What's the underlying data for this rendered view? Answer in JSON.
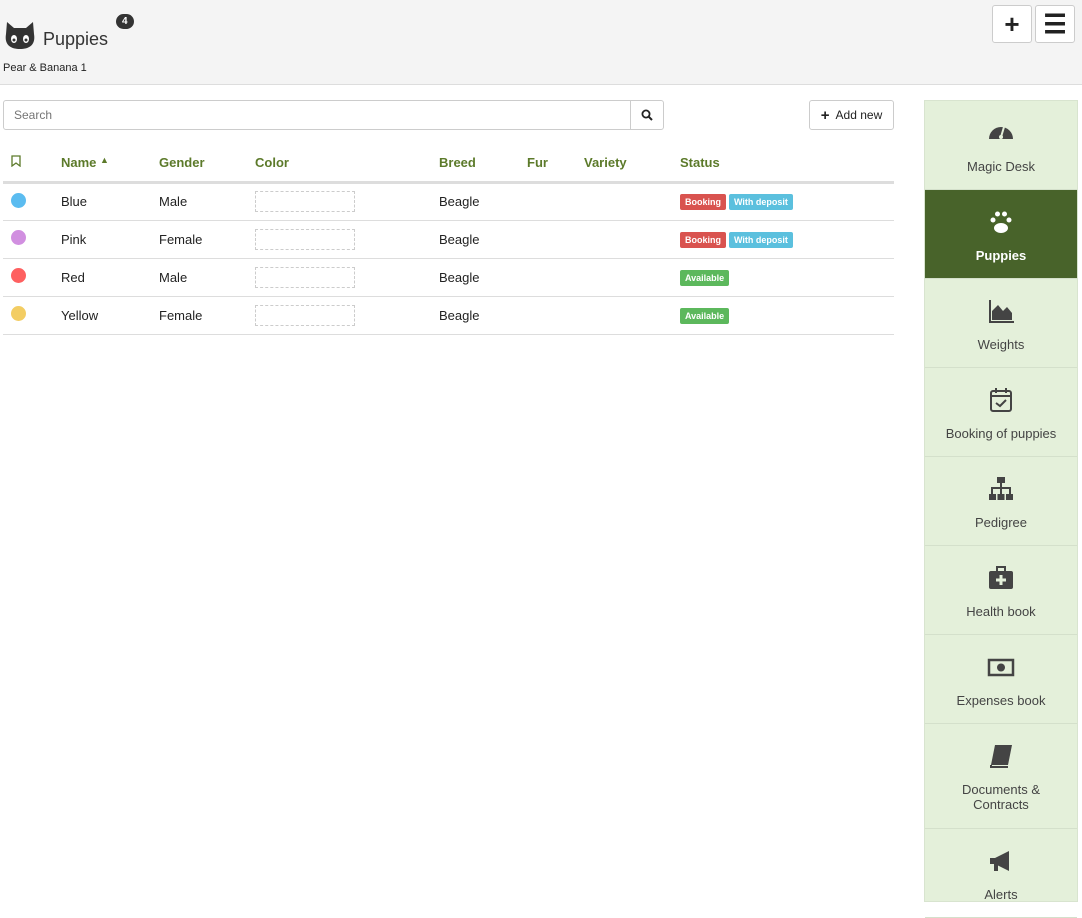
{
  "header": {
    "title": "Puppies",
    "count": "4",
    "subtitle": "Pear & Banana 1"
  },
  "toolbar": {
    "search_placeholder": "Search",
    "add_new": "Add new"
  },
  "table": {
    "columns": [
      "Name",
      "Gender",
      "Color",
      "Breed",
      "Fur",
      "Variety",
      "Status"
    ],
    "rows": [
      {
        "dot": "#5bbcf0",
        "name": "Blue",
        "gender": "Male",
        "breed": "Beagle",
        "fur": "",
        "variety": "",
        "tags": [
          "Booking",
          "With deposit"
        ]
      },
      {
        "dot": "#d18fe0",
        "name": "Pink",
        "gender": "Female",
        "breed": "Beagle",
        "fur": "",
        "variety": "",
        "tags": [
          "Booking",
          "With deposit"
        ]
      },
      {
        "dot": "#fe6060",
        "name": "Red",
        "gender": "Male",
        "breed": "Beagle",
        "fur": "",
        "variety": "",
        "tags": [
          "Available"
        ]
      },
      {
        "dot": "#f3cd63",
        "name": "Yellow",
        "gender": "Female",
        "breed": "Beagle",
        "fur": "",
        "variety": "",
        "tags": [
          "Available"
        ]
      }
    ]
  },
  "tag_colors": {
    "Booking": "#d9534f",
    "With deposit": "#5bc0de",
    "Available": "#5cb85c"
  },
  "sidebar": {
    "items": [
      {
        "label": "Magic Desk",
        "icon": "dashboard-icon"
      },
      {
        "label": "Puppies",
        "icon": "paw-icon",
        "active": true
      },
      {
        "label": "Weights",
        "icon": "area-chart-icon"
      },
      {
        "label": "Booking of puppies",
        "icon": "calendar-check-icon"
      },
      {
        "label": "Pedigree",
        "icon": "sitemap-icon"
      },
      {
        "label": "Health book",
        "icon": "medkit-icon"
      },
      {
        "label": "Expenses book",
        "icon": "money-icon"
      },
      {
        "label": "Documents & Contracts",
        "icon": "book-icon"
      },
      {
        "label": "Alerts",
        "icon": "bullhorn-icon"
      }
    ]
  },
  "colors": {
    "accent": "#48632a",
    "header_text": "#5c7a2a",
    "sidebar_bg": "#e4f0da"
  }
}
